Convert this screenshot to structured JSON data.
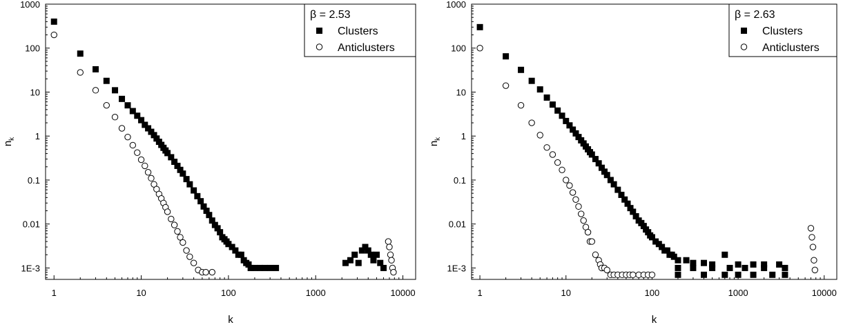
{
  "chart_data": [
    {
      "type": "scatter",
      "xlabel": "k",
      "ylabel": "n",
      "ylabel_sub": "k",
      "xscale": "log",
      "yscale": "log",
      "xlim": [
        0.8,
        14000
      ],
      "ylim": [
        0.00055,
        1000
      ],
      "x_ticks": [
        1,
        10,
        100,
        1000,
        10000
      ],
      "x_tick_labels": [
        "1",
        "10",
        "100",
        "1000",
        "10000"
      ],
      "y_ticks": [
        0.001,
        0.01,
        0.1,
        1,
        10,
        100,
        1000
      ],
      "y_tick_labels": [
        "1E-3",
        "0.01",
        "0.1",
        "1",
        "10",
        "100",
        "1000"
      ],
      "grid": false,
      "legend_position": "top-right",
      "legend_title": "β = 2.53",
      "series": [
        {
          "name": "Clusters",
          "marker": "filled-square",
          "x": [
            1,
            2,
            3,
            4,
            5,
            6,
            7,
            8,
            9,
            10,
            11,
            12,
            13,
            14,
            15,
            16,
            17,
            18,
            19,
            20,
            22,
            24,
            26,
            28,
            30,
            33,
            36,
            40,
            44,
            48,
            52,
            56,
            60,
            65,
            70,
            75,
            80,
            85,
            90,
            95,
            100,
            110,
            120,
            130,
            140,
            150,
            160,
            170,
            180,
            200,
            230,
            260,
            300,
            350,
            2200,
            2500,
            2800,
            3100,
            3400,
            3700,
            4000,
            4300,
            4600,
            5000,
            5500,
            6000
          ],
          "values": [
            400,
            75,
            33,
            18,
            11,
            7,
            5,
            3.7,
            2.9,
            2.3,
            1.8,
            1.5,
            1.25,
            1.05,
            0.88,
            0.74,
            0.63,
            0.54,
            0.47,
            0.41,
            0.33,
            0.26,
            0.21,
            0.17,
            0.14,
            0.105,
            0.08,
            0.058,
            0.043,
            0.033,
            0.025,
            0.02,
            0.016,
            0.012,
            0.0095,
            0.008,
            0.0065,
            0.005,
            0.0045,
            0.004,
            0.0035,
            0.003,
            0.0025,
            0.002,
            0.002,
            0.0015,
            0.0013,
            0.0012,
            0.001,
            0.001,
            0.001,
            0.001,
            0.001,
            0.001,
            0.0013,
            0.0015,
            0.002,
            0.0013,
            0.0025,
            0.003,
            0.0025,
            0.002,
            0.0015,
            0.002,
            0.0013,
            0.001
          ]
        },
        {
          "name": "Anticlusters",
          "marker": "open-circle",
          "x": [
            1,
            2,
            3,
            4,
            5,
            6,
            7,
            8,
            9,
            10,
            11,
            12,
            13,
            14,
            15,
            16,
            17,
            18,
            19,
            20,
            22,
            24,
            26,
            28,
            30,
            33,
            36,
            40,
            45,
            50,
            55,
            65,
            6800,
            7000,
            7200,
            7400,
            7600,
            7800
          ],
          "values": [
            200,
            28,
            11,
            5,
            2.7,
            1.5,
            0.95,
            0.62,
            0.42,
            0.29,
            0.21,
            0.15,
            0.11,
            0.08,
            0.062,
            0.048,
            0.038,
            0.03,
            0.024,
            0.019,
            0.013,
            0.0095,
            0.0068,
            0.005,
            0.0038,
            0.0025,
            0.0018,
            0.0013,
            0.0009,
            0.0008,
            0.0008,
            0.0008,
            0.004,
            0.003,
            0.002,
            0.0015,
            0.001,
            0.0008
          ]
        }
      ]
    },
    {
      "type": "scatter",
      "xlabel": "k",
      "ylabel": "n",
      "ylabel_sub": "k",
      "xscale": "log",
      "yscale": "log",
      "xlim": [
        0.8,
        14000
      ],
      "ylim": [
        0.00055,
        1000
      ],
      "x_ticks": [
        1,
        10,
        100,
        1000,
        10000
      ],
      "x_tick_labels": [
        "1",
        "10",
        "100",
        "1000",
        "10000"
      ],
      "y_ticks": [
        0.001,
        0.01,
        0.1,
        1,
        10,
        100,
        1000
      ],
      "y_tick_labels": [
        "1E-3",
        "0.01",
        "0.1",
        "1",
        "10",
        "100",
        "1000"
      ],
      "grid": false,
      "legend_position": "top-right",
      "legend_title": "β = 2.63",
      "series": [
        {
          "name": "Clusters",
          "marker": "filled-square",
          "x": [
            1,
            2,
            3,
            4,
            5,
            6,
            7,
            8,
            9,
            10,
            11,
            12,
            13,
            14,
            15,
            16,
            17,
            18,
            19,
            20,
            22,
            24,
            26,
            28,
            30,
            33,
            36,
            40,
            44,
            48,
            52,
            56,
            60,
            65,
            70,
            75,
            80,
            85,
            90,
            95,
            100,
            110,
            120,
            130,
            140,
            150,
            160,
            170,
            180,
            200,
            250,
            300,
            400,
            500,
            700,
            1000,
            1500,
            2000,
            3000,
            200,
            300,
            500,
            800,
            1200,
            2000,
            3500,
            200,
            400,
            700,
            1000,
            1500,
            2500,
            3500
          ],
          "values": [
            300,
            65,
            32,
            18,
            11.5,
            7.5,
            5.2,
            3.8,
            2.9,
            2.2,
            1.75,
            1.4,
            1.15,
            0.95,
            0.8,
            0.68,
            0.58,
            0.5,
            0.43,
            0.38,
            0.3,
            0.24,
            0.19,
            0.155,
            0.13,
            0.1,
            0.08,
            0.06,
            0.046,
            0.036,
            0.029,
            0.023,
            0.019,
            0.015,
            0.012,
            0.0105,
            0.009,
            0.0075,
            0.0065,
            0.0055,
            0.005,
            0.004,
            0.0035,
            0.003,
            0.0025,
            0.0025,
            0.002,
            0.002,
            0.0018,
            0.0015,
            0.0015,
            0.0013,
            0.0013,
            0.0012,
            0.002,
            0.0012,
            0.0012,
            0.0012,
            0.0012,
            0.001,
            0.001,
            0.001,
            0.001,
            0.001,
            0.001,
            0.001,
            0.0007,
            0.0007,
            0.0007,
            0.0007,
            0.0007,
            0.0007,
            0.0007
          ]
        },
        {
          "name": "Anticlusters",
          "marker": "open-circle",
          "x": [
            1,
            2,
            3,
            4,
            5,
            6,
            7,
            8,
            9,
            10,
            11,
            12,
            13,
            14,
            15,
            16,
            17,
            18,
            19,
            20,
            22,
            24,
            25,
            26,
            28,
            30,
            33,
            36,
            40,
            45,
            50,
            55,
            60,
            70,
            80,
            90,
            100,
            7000,
            7200,
            7400,
            7600,
            7800
          ],
          "values": [
            100,
            14,
            5,
            2,
            1.05,
            0.55,
            0.38,
            0.25,
            0.17,
            0.1,
            0.075,
            0.052,
            0.036,
            0.025,
            0.017,
            0.012,
            0.0085,
            0.0065,
            0.004,
            0.004,
            0.002,
            0.0015,
            0.0012,
            0.001,
            0.001,
            0.0009,
            0.0007,
            0.0007,
            0.0007,
            0.0007,
            0.0007,
            0.0007,
            0.0007,
            0.0007,
            0.0007,
            0.0007,
            0.0007,
            0.008,
            0.005,
            0.003,
            0.0015,
            0.0009
          ]
        }
      ]
    }
  ]
}
